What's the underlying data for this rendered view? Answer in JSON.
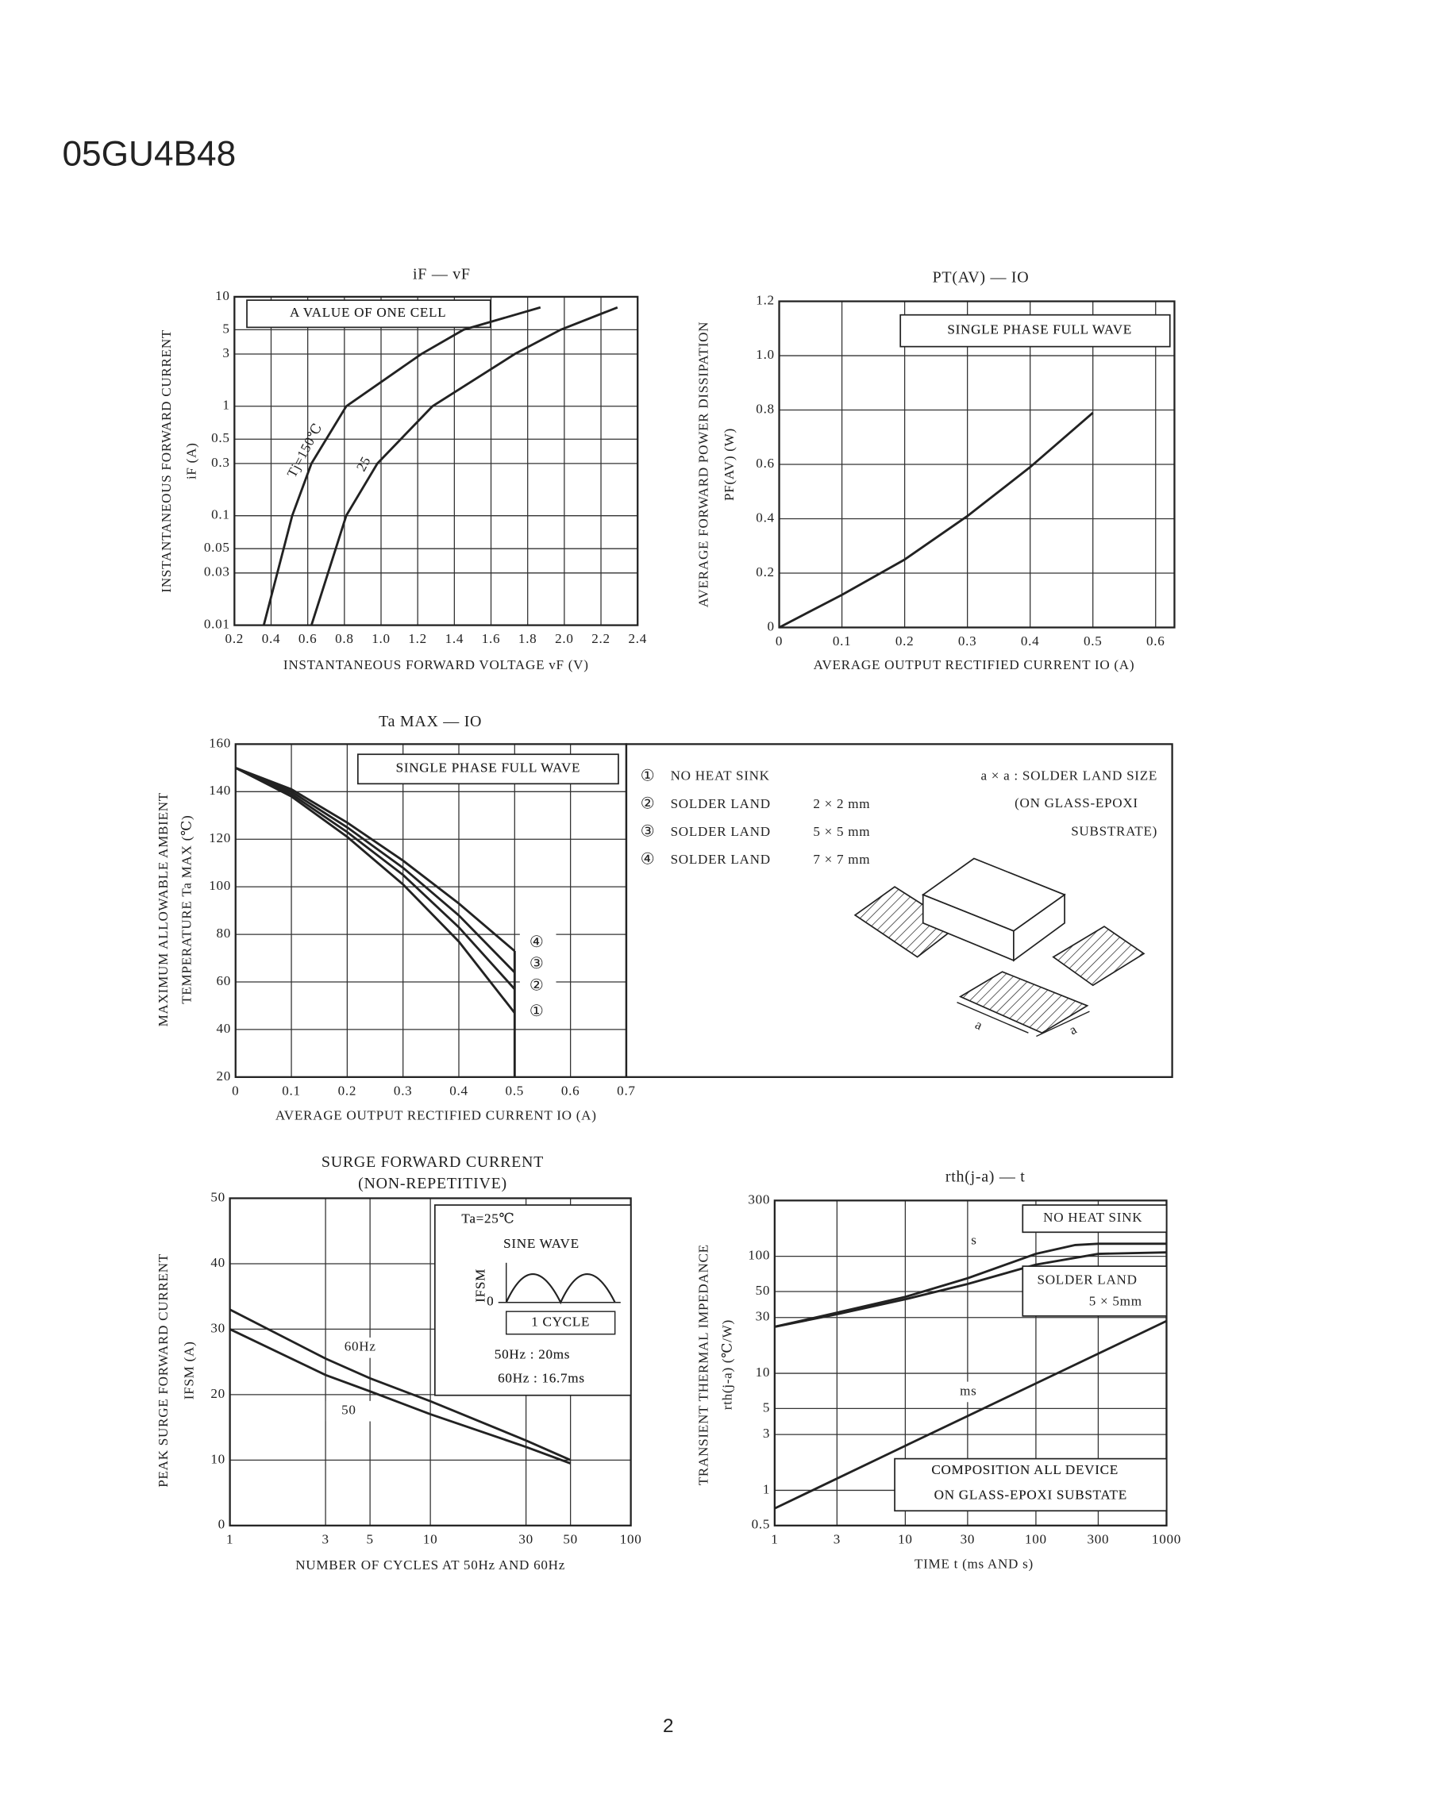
{
  "header": {
    "title": "05GU4B48"
  },
  "footer": {
    "page": "2"
  },
  "chart_data": [
    {
      "type": "line",
      "title": "iF — vF",
      "y_label": [
        "INSTANTANEOUS FORWARD CURRENT",
        "iF (A)"
      ],
      "x_label": "INSTANTANEOUS FORWARD VOLTAGE vF (V)",
      "xlim": [
        0.2,
        2.4
      ],
      "ylim": [
        0.01,
        10
      ],
      "ylog": true,
      "grid": true,
      "xticks": [
        0.2,
        0.4,
        0.6,
        0.8,
        {
          "value": 1,
          "label": "1.0"
        },
        1.2,
        1.4,
        1.6,
        1.8,
        {
          "value": 2,
          "label": "2.0"
        },
        2.2,
        2.4
      ],
      "yticks": [
        0.01,
        0.03,
        0.05,
        0.1,
        0.3,
        0.5,
        1,
        3,
        5,
        10
      ],
      "annotations": [
        "A VALUE OF ONE CELL"
      ],
      "series": [
        {
          "name": "Tj=150℃",
          "color": "#222",
          "x": [
            0.36,
            0.515,
            0.62,
            0.81,
            1.22,
            1.45,
            1.87
          ],
          "values": [
            0.01,
            0.1,
            0.3,
            1,
            3,
            5,
            8
          ]
        },
        {
          "name": "25",
          "color": "#222",
          "x": [
            0.62,
            0.81,
            0.98,
            1.28,
            1.73,
            1.98,
            2.29
          ],
          "values": [
            0.01,
            0.1,
            0.3,
            1,
            3,
            5,
            8
          ]
        }
      ]
    },
    {
      "type": "line",
      "title": "PT(AV) — IO",
      "y_label": [
        "AVERAGE FORWARD POWER DISSIPATION",
        "PF(AV) (W)"
      ],
      "x_label": "AVERAGE OUTPUT RECTIFIED CURRENT IO (A)",
      "xlim": [
        0,
        0.63
      ],
      "ylim": [
        0,
        1.2
      ],
      "grid": true,
      "xticks": [
        0,
        0.1,
        0.2,
        0.3,
        0.4,
        0.5,
        0.6
      ],
      "yticks": [
        0,
        0.2,
        0.4,
        0.6,
        0.8,
        {
          "value": 1,
          "label": "1.0"
        },
        1.2
      ],
      "annotations": [
        "SINGLE PHASE FULL WAVE"
      ],
      "series": [
        {
          "color": "#222",
          "x": [
            0,
            0.1,
            0.2,
            0.3,
            0.4,
            0.5
          ],
          "values": [
            0,
            0.12,
            0.25,
            0.41,
            0.59,
            0.79
          ]
        }
      ]
    },
    {
      "type": "line",
      "title": "Ta MAX — IO",
      "y_label": [
        "MAXIMUM ALLOWABLE AMBIENT",
        "TEMPERATURE Ta MAX (℃)"
      ],
      "x_label": "AVERAGE OUTPUT RECTIFIED CURRENT IO (A)",
      "xlim": [
        0,
        0.7
      ],
      "ylim": [
        20,
        160
      ],
      "grid": true,
      "xticks": [
        0,
        0.1,
        0.2,
        0.3,
        0.4,
        0.5,
        0.6,
        0.7
      ],
      "yticks": [
        20,
        40,
        60,
        80,
        100,
        120,
        140,
        160
      ],
      "annotations": [
        "SINGLE PHASE FULL WAVE"
      ],
      "x": [
        0,
        0.1,
        0.2,
        0.3,
        0.4,
        0.5
      ],
      "series": [
        {
          "name": "①",
          "desc": "NO HEAT SINK",
          "color": "#222",
          "values": [
            150,
            138,
            121,
            101,
            77,
            47
          ]
        },
        {
          "name": "②",
          "desc": "SOLDER LAND",
          "size": "2 × 2 mm",
          "color": "#222",
          "values": [
            150,
            139,
            123,
            105,
            83,
            57
          ]
        },
        {
          "name": "③",
          "desc": "SOLDER LAND",
          "size": "5 × 5 mm",
          "color": "#222",
          "values": [
            150,
            140,
            125,
            108,
            88,
            64
          ]
        },
        {
          "name": "④",
          "desc": "SOLDER LAND",
          "size": "7 × 7 mm",
          "color": "#222",
          "values": [
            150,
            141,
            127,
            111,
            93,
            73
          ]
        }
      ],
      "notes": [
        "a × a : SOLDER LAND SIZE",
        "(ON GLASS-EPOXI",
        "SUBSTRATE)",
        "a",
        "a"
      ]
    },
    {
      "type": "line",
      "title": "SURGE FORWARD CURRENT",
      "subtitle": "(NON-REPETITIVE)",
      "y_label": [
        "PEAK SURGE FORWARD CURRENT",
        "IFSM (A)"
      ],
      "x_label": "NUMBER OF CYCLES AT 50Hz AND 60Hz",
      "xlim": [
        1,
        100
      ],
      "ylim": [
        0,
        50
      ],
      "xlog": true,
      "grid": true,
      "xticks": [
        1,
        3,
        5,
        10,
        30,
        50,
        100
      ],
      "yticks": [
        0,
        10,
        20,
        30,
        40,
        50
      ],
      "annotations": [
        "Ta=25℃",
        "SINE WAVE",
        "IFSM",
        "0",
        "1 CYCLE",
        "50Hz : 20ms",
        "60Hz : 16.7ms"
      ],
      "x": [
        1,
        3,
        5,
        10,
        30,
        50
      ],
      "series": [
        {
          "name": "60Hz",
          "color": "#222",
          "values": [
            33,
            25.5,
            22.5,
            19,
            13,
            10
          ]
        },
        {
          "name": "50",
          "color": "#222",
          "values": [
            30,
            23,
            20.5,
            17,
            12,
            9.5
          ]
        }
      ]
    },
    {
      "type": "line",
      "title": "rth(j-a) — t",
      "y_label": [
        "TRANSIENT THERMAL IMPEDANCE",
        "rth(j-a) (℃/W)"
      ],
      "x_label": "TIME t (ms AND s)",
      "xlim": [
        1,
        1000
      ],
      "ylim": [
        0.5,
        300
      ],
      "xlog": true,
      "ylog": true,
      "grid": true,
      "xticks": [
        1,
        3,
        10,
        30,
        100,
        300,
        1000
      ],
      "yticks": [
        0.5,
        1,
        3,
        5,
        10,
        30,
        50,
        100,
        300
      ],
      "annotations": [
        "s",
        "COMPOSITION ALL DEVICE",
        "ON GLASS-EPOXI SUBSTATE"
      ],
      "series": [
        {
          "name": "NO HEAT SINK",
          "color": "#222",
          "x": [
            1,
            3,
            10,
            30,
            100,
            200,
            300,
            1000
          ],
          "values": [
            25,
            33,
            45,
            65,
            105,
            125,
            128,
            128
          ]
        },
        {
          "name": "SOLDER LAND",
          "size": "5 × 5mm",
          "color": "#222",
          "x": [
            1,
            3,
            10,
            30,
            100,
            300,
            1000
          ],
          "values": [
            25,
            32,
            43,
            58,
            85,
            105,
            108
          ]
        },
        {
          "name": "ms",
          "color": "#222",
          "x": [
            1,
            10,
            100,
            1000
          ],
          "values": [
            0.7,
            2.4,
            8.2,
            28
          ]
        }
      ]
    }
  ]
}
